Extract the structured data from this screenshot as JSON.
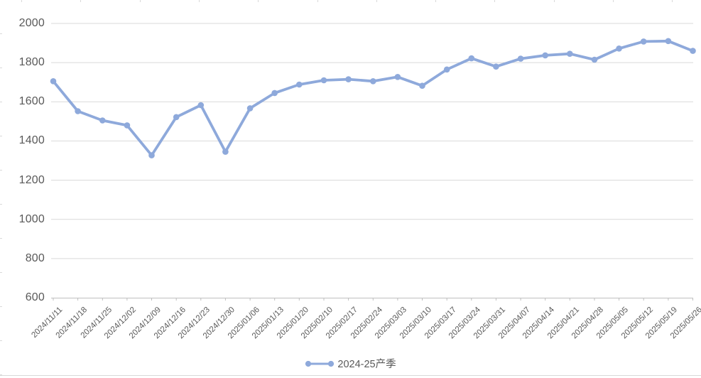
{
  "chart_data": {
    "type": "line",
    "title": "",
    "x": [
      "2024/11/11",
      "2024/11/18",
      "2024/11/25",
      "2024/12/02",
      "2024/12/09",
      "2024/12/16",
      "2024/12/23",
      "2024/12/30",
      "2025/01/06",
      "2025/01/13",
      "2025/01/20",
      "2025/02/10",
      "2025/02/17",
      "2025/02/24",
      "2025/03/03",
      "2025/03/10",
      "2025/03/17",
      "2025/03/24",
      "2025/03/31",
      "2025/04/07",
      "2025/04/14",
      "2025/04/21",
      "2025/04/28",
      "2025/05/05",
      "2025/05/12",
      "2025/05/19",
      "2025/05/26"
    ],
    "series": [
      {
        "name": "2024-25产季",
        "color": "#8EA9DB",
        "marker": "circle",
        "values": [
          1705,
          1552,
          1505,
          1480,
          1327,
          1522,
          1583,
          1345,
          1567,
          1645,
          1688,
          1710,
          1715,
          1705,
          1727,
          1682,
          1765,
          1822,
          1780,
          1820,
          1837,
          1845,
          1815,
          1872,
          1908,
          1910,
          1860
        ]
      }
    ],
    "xlabel": "",
    "ylabel": "",
    "ylim": [
      600,
      2000
    ],
    "yticks": [
      600,
      800,
      1000,
      1200,
      1400,
      1600,
      1800,
      2000
    ],
    "grid": "horizontal",
    "legend_position": "bottom",
    "colors": {
      "series": "#8EA9DB",
      "axis_text": "#595959",
      "gridline": "#D9D9D9",
      "axis_line": "#BFBFBF"
    }
  }
}
